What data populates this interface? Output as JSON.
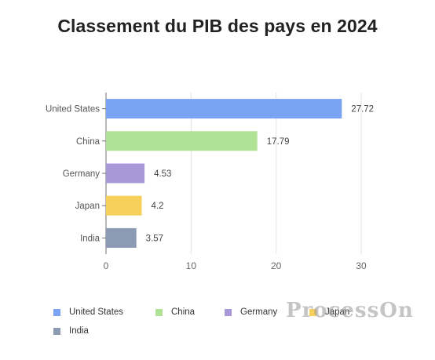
{
  "chart_data": {
    "type": "bar",
    "orientation": "horizontal",
    "title": "Classement du PIB des pays en 2024",
    "categories": [
      "United States",
      "China",
      "Germany",
      "Japan",
      "India"
    ],
    "values": [
      27.72,
      17.79,
      4.53,
      4.2,
      3.57
    ],
    "colors": [
      "#7aa3f3",
      "#b0e295",
      "#a898d8",
      "#f6d05a",
      "#8c9ab4"
    ],
    "xlim": [
      0,
      30
    ],
    "xticks": [
      0,
      10,
      20,
      30
    ],
    "grid": true,
    "legend_position": "bottom"
  },
  "watermark": "ProcessOn"
}
